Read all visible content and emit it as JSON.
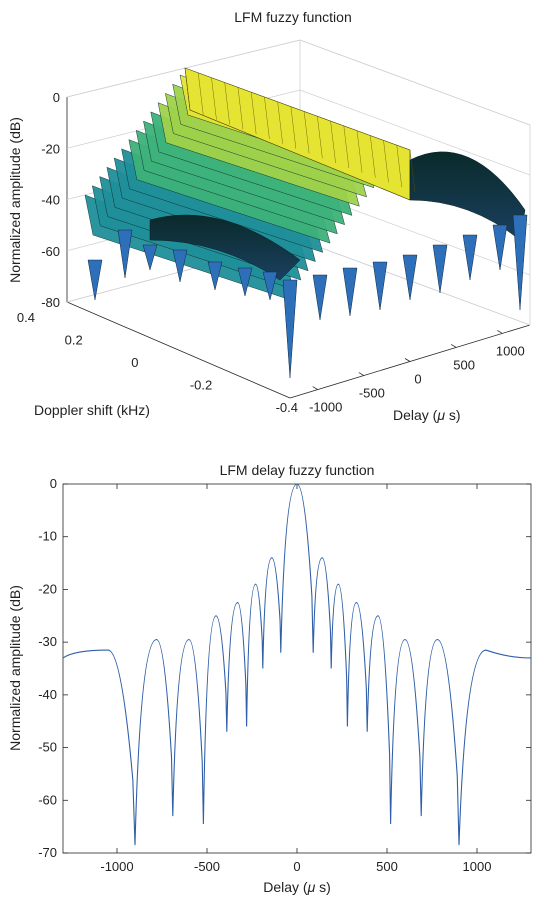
{
  "chart_data": [
    {
      "type": "surface",
      "title": "LFM fuzzy function",
      "zlabel": "Normalized amplitude (dB)",
      "xlabel_prefix": "Delay (",
      "xlabel_mu": "μ",
      "xlabel_suffix": " s)",
      "ylabel": "Doppler shift (kHz)",
      "x_ticks": [
        -1000,
        -500,
        0,
        500,
        1000
      ],
      "y_ticks": [
        -0.4,
        -0.2,
        0,
        0.2,
        0.4
      ],
      "z_ticks": [
        0,
        -20,
        -40,
        -60,
        -80
      ],
      "xlim": [
        -1300,
        1300
      ],
      "ylim": [
        -0.4,
        0.4
      ],
      "zlim": [
        -80,
        0
      ],
      "colormap": [
        "#2a1a6e",
        "#2d7fbf",
        "#1fa59a",
        "#5fc45a",
        "#e6e432"
      ],
      "ridge": {
        "start": [
          -1000,
          -0.4,
          0
        ],
        "end": [
          1000,
          0.4,
          0
        ]
      }
    },
    {
      "type": "line",
      "title": "LFM delay fuzzy function",
      "xlabel_prefix": "Delay (",
      "xlabel_mu": "μ",
      "xlabel_suffix": " s)",
      "ylabel": "Normalized amplitude (dB)",
      "xlim": [
        -1300,
        1300
      ],
      "ylim": [
        -70,
        0
      ],
      "x_ticks": [
        -1000,
        -500,
        0,
        500,
        1000
      ],
      "y_ticks": [
        0,
        -10,
        -20,
        -30,
        -40,
        -50,
        -60,
        -70
      ],
      "line_color": "#2f5fa8",
      "main_lobe": {
        "center": 0,
        "peak": 0,
        "first_nulls": [
          -90,
          90
        ]
      },
      "side_lobes": [
        {
          "x": -1050,
          "y": -31.5
        },
        {
          "x": -780,
          "y": -29.5
        },
        {
          "x": -600,
          "y": -29.5
        },
        {
          "x": -450,
          "y": -25
        },
        {
          "x": -330,
          "y": -22.5
        },
        {
          "x": -230,
          "y": -19
        },
        {
          "x": -140,
          "y": -14
        },
        {
          "x": 140,
          "y": -14
        },
        {
          "x": 230,
          "y": -19
        },
        {
          "x": 330,
          "y": -22.5
        },
        {
          "x": 450,
          "y": -25
        },
        {
          "x": 600,
          "y": -29.5
        },
        {
          "x": 780,
          "y": -29.5
        },
        {
          "x": 1050,
          "y": -31.5
        }
      ],
      "nulls": [
        {
          "x": -900,
          "y": -68.5
        },
        {
          "x": -690,
          "y": -63
        },
        {
          "x": -520,
          "y": -64.5
        },
        {
          "x": -390,
          "y": -47
        },
        {
          "x": -280,
          "y": -46
        },
        {
          "x": -190,
          "y": -35
        },
        {
          "x": -90,
          "y": -32
        },
        {
          "x": 90,
          "y": -32
        },
        {
          "x": 190,
          "y": -35
        },
        {
          "x": 280,
          "y": -46
        },
        {
          "x": 390,
          "y": -47
        },
        {
          "x": 520,
          "y": -64.5
        },
        {
          "x": 690,
          "y": -63
        },
        {
          "x": 900,
          "y": -68.5
        }
      ],
      "edge_values": [
        {
          "x": -1300,
          "y": -33
        },
        {
          "x": 1300,
          "y": -33
        }
      ]
    }
  ]
}
